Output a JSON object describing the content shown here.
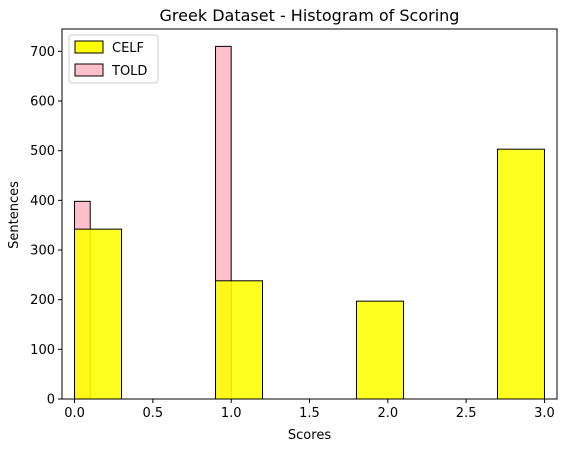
{
  "chart_data": {
    "type": "bar",
    "title": "Greek Dataset - Histogram of Scoring",
    "xlabel": "Scores",
    "ylabel": "Sentences",
    "xlim": [
      -0.08,
      3.08
    ],
    "ylim": [
      0,
      745
    ],
    "xticks": [
      0.0,
      0.5,
      1.0,
      1.5,
      2.0,
      2.5,
      3.0
    ],
    "xtick_labels": [
      "0.0",
      "0.5",
      "1.0",
      "1.5",
      "2.0",
      "2.5",
      "3.0"
    ],
    "yticks": [
      0,
      100,
      200,
      300,
      400,
      500,
      600,
      700
    ],
    "ytick_labels": [
      "0",
      "100",
      "200",
      "300",
      "400",
      "500",
      "600",
      "700"
    ],
    "legend_position": "top-left",
    "series": [
      {
        "name": "TOLD",
        "color": "#ffc0cb",
        "bins": [
          {
            "x0": 0.0,
            "x1": 0.1,
            "value": 398
          },
          {
            "x0": 0.9,
            "x1": 1.0,
            "value": 710
          }
        ]
      },
      {
        "name": "CELF",
        "color": "#ffff00",
        "bins": [
          {
            "x0": 0.0,
            "x1": 0.3,
            "value": 342
          },
          {
            "x0": 0.3,
            "x1": 0.6,
            "value": 0
          },
          {
            "x0": 0.6,
            "x1": 0.9,
            "value": 0
          },
          {
            "x0": 0.9,
            "x1": 1.2,
            "value": 238
          },
          {
            "x0": 1.2,
            "x1": 1.5,
            "value": 0
          },
          {
            "x0": 1.5,
            "x1": 1.8,
            "value": 0
          },
          {
            "x0": 1.8,
            "x1": 2.1,
            "value": 197
          },
          {
            "x0": 2.1,
            "x1": 2.4,
            "value": 0
          },
          {
            "x0": 2.4,
            "x1": 2.7,
            "value": 0
          },
          {
            "x0": 2.7,
            "x1": 3.0,
            "value": 503
          }
        ]
      }
    ],
    "legend": [
      {
        "name": "CELF",
        "color": "#ffff00"
      },
      {
        "name": "TOLD",
        "color": "#ffc0cb"
      }
    ]
  }
}
